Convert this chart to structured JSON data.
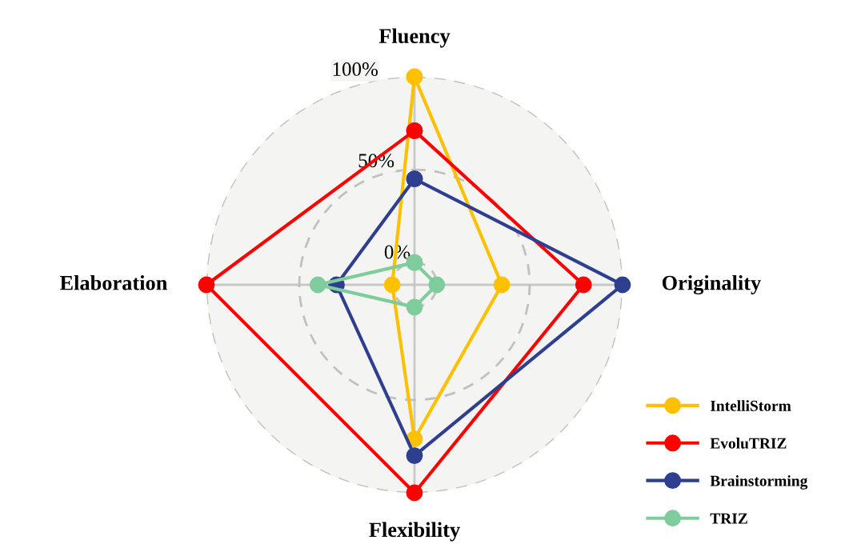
{
  "chart_data": {
    "type": "radar",
    "categories": [
      "Fluency",
      "Originality",
      "Flexibility",
      "Elaboration"
    ],
    "series": [
      {
        "name": "IntelliStorm",
        "color": "#ffc000",
        "values": [
          100,
          35,
          71,
          0
        ]
      },
      {
        "name": "EvoluTRIZ",
        "color": "#ff0000",
        "values": [
          71,
          79,
          100,
          100
        ]
      },
      {
        "name": "Brainstorming",
        "color": "#2e3f8f",
        "values": [
          45,
          100,
          80,
          30
        ]
      },
      {
        "name": "TRIZ",
        "color": "#7fcc9c",
        "values": [
          0,
          0,
          0,
          40
        ]
      }
    ],
    "ylim": [
      -12,
      100
    ],
    "yticks": [
      {
        "value": 0,
        "label": "0%"
      },
      {
        "value": 50,
        "label": "50%"
      },
      {
        "value": 100,
        "label": "100%"
      }
    ],
    "grid": true,
    "legend": "bottom right",
    "marker": "circle",
    "line_style": "solid"
  }
}
